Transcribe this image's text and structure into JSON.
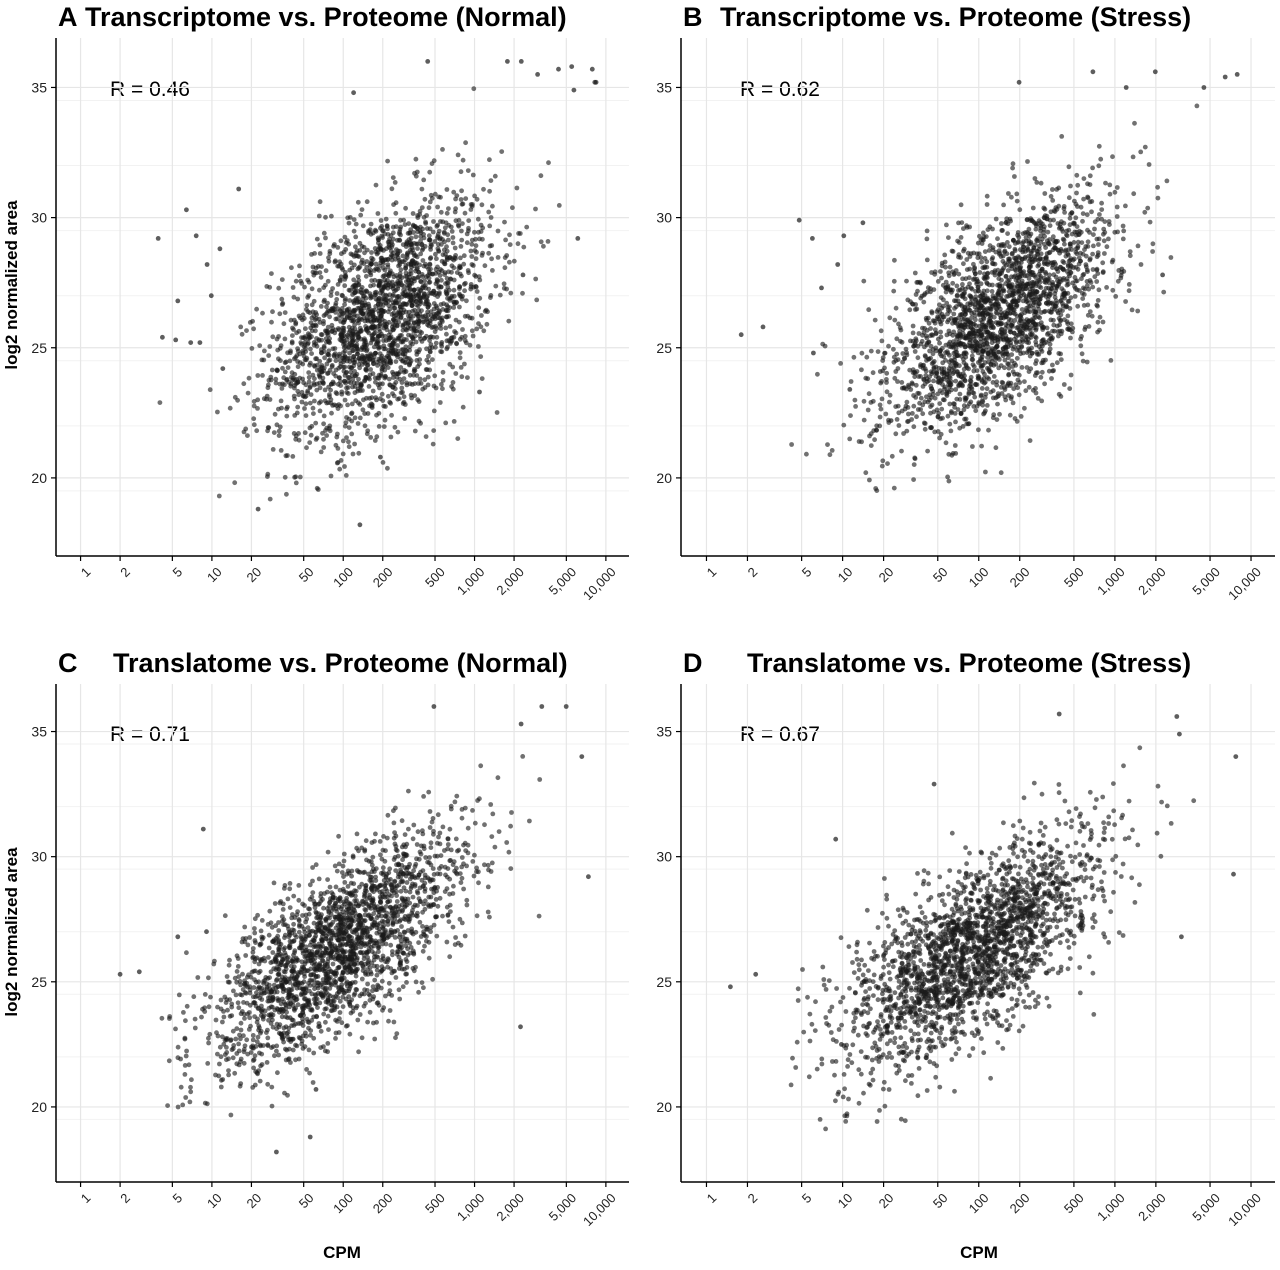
{
  "figure": {
    "ylabel": "log2 normalized area",
    "xlabel": "CPM"
  },
  "chart_data": [
    {
      "panel_letter": "A",
      "title": "Transcriptome vs. Proteome (Normal)",
      "type": "scatter",
      "annotation": "R = 0.46",
      "x_scale": "log10",
      "xlim": [
        0.65,
        15000
      ],
      "ylim": [
        17.0,
        36.9
      ],
      "x_ticks": [
        1,
        2,
        5,
        10,
        20,
        50,
        100,
        200,
        500,
        1000,
        2000,
        5000,
        10000
      ],
      "x_tick_labels": [
        "1",
        "2",
        "5",
        "10",
        "20",
        "50",
        "100",
        "200",
        "500",
        "1,000",
        "2,000",
        "5,000",
        "10,000"
      ],
      "y_ticks": [
        20,
        25,
        30,
        35
      ],
      "y_tick_labels": [
        "20",
        "25",
        "30",
        "35"
      ],
      "grid": true,
      "point_color": "#1a1a1a",
      "cloud": {
        "n": 2200,
        "center_log10_cpm": 2.3,
        "sd_log10_cpm": 0.42,
        "center_y": 26.2,
        "sd_y": 2.3,
        "r": 0.46
      },
      "outliers": [
        {
          "x": 3.9,
          "y": 29.2
        },
        {
          "x": 5.5,
          "y": 26.8
        },
        {
          "x": 6.4,
          "y": 30.3
        },
        {
          "x": 7.6,
          "y": 29.3
        },
        {
          "x": 8.1,
          "y": 25.2
        },
        {
          "x": 9.2,
          "y": 28.2
        },
        {
          "x": 9.9,
          "y": 27.0
        },
        {
          "x": 11.5,
          "y": 28.8
        },
        {
          "x": 12.1,
          "y": 24.2
        },
        {
          "x": 4.2,
          "y": 25.4
        },
        {
          "x": 5.3,
          "y": 25.3
        },
        {
          "x": 6.9,
          "y": 25.2
        },
        {
          "x": 22.5,
          "y": 18.8
        },
        {
          "x": 134,
          "y": 18.2
        },
        {
          "x": 192,
          "y": 20.8
        },
        {
          "x": 1090,
          "y": 23.3
        },
        {
          "x": 2340,
          "y": 27.8
        },
        {
          "x": 6110,
          "y": 29.2
        },
        {
          "x": 2270,
          "y": 36.0
        },
        {
          "x": 1780,
          "y": 36.0
        },
        {
          "x": 3020,
          "y": 35.5
        },
        {
          "x": 4360,
          "y": 35.7
        },
        {
          "x": 5490,
          "y": 35.8
        },
        {
          "x": 5710,
          "y": 34.9
        },
        {
          "x": 7880,
          "y": 35.7
        },
        {
          "x": 8420,
          "y": 35.2
        },
        {
          "x": 8240,
          "y": 35.2
        },
        {
          "x": 440,
          "y": 36.0
        },
        {
          "x": 120,
          "y": 34.8
        },
        {
          "x": 16,
          "y": 31.1
        }
      ]
    },
    {
      "panel_letter": "B",
      "title": "Transcriptome vs. Proteome (Stress)",
      "type": "scatter",
      "annotation": "R = 0.62",
      "x_scale": "log10",
      "xlim": [
        0.65,
        15000
      ],
      "ylim": [
        17.0,
        36.9
      ],
      "x_ticks": [
        1,
        2,
        5,
        10,
        20,
        50,
        100,
        200,
        500,
        1000,
        2000,
        5000,
        10000
      ],
      "x_tick_labels": [
        "1",
        "2",
        "5",
        "10",
        "20",
        "50",
        "100",
        "200",
        "500",
        "1,000",
        "2,000",
        "5,000",
        "10,000"
      ],
      "y_ticks": [
        20,
        25,
        30,
        35
      ],
      "y_tick_labels": [
        "20",
        "25",
        "30",
        "35"
      ],
      "grid": true,
      "point_color": "#1a1a1a",
      "cloud": {
        "n": 2200,
        "center_log10_cpm": 2.15,
        "sd_log10_cpm": 0.42,
        "center_y": 26.3,
        "sd_y": 2.3,
        "r": 0.62
      },
      "outliers": [
        {
          "x": 1.8,
          "y": 25.5
        },
        {
          "x": 2.6,
          "y": 25.8
        },
        {
          "x": 4.8,
          "y": 29.9
        },
        {
          "x": 6.0,
          "y": 29.2
        },
        {
          "x": 6.1,
          "y": 24.8
        },
        {
          "x": 7.0,
          "y": 27.3
        },
        {
          "x": 9.2,
          "y": 28.2
        },
        {
          "x": 10.2,
          "y": 29.3
        },
        {
          "x": 11.3,
          "y": 23.4
        },
        {
          "x": 14.1,
          "y": 29.8
        },
        {
          "x": 22.7,
          "y": 22.2
        },
        {
          "x": 198,
          "y": 35.2
        },
        {
          "x": 690,
          "y": 35.6
        },
        {
          "x": 1210,
          "y": 35.0
        },
        {
          "x": 1980,
          "y": 35.6
        },
        {
          "x": 4510,
          "y": 35.0
        },
        {
          "x": 6460,
          "y": 35.4
        },
        {
          "x": 7910,
          "y": 35.5
        },
        {
          "x": 2240,
          "y": 27.8
        }
      ]
    },
    {
      "panel_letter": "C",
      "title": "Translatome vs. Proteome (Normal)",
      "type": "scatter",
      "annotation": "R = 0.71",
      "x_scale": "log10",
      "xlim": [
        0.65,
        15000
      ],
      "ylim": [
        17.0,
        36.9
      ],
      "x_ticks": [
        1,
        2,
        5,
        10,
        20,
        50,
        100,
        200,
        500,
        1000,
        2000,
        5000,
        10000
      ],
      "x_tick_labels": [
        "1",
        "2",
        "5",
        "10",
        "20",
        "50",
        "100",
        "200",
        "500",
        "1,000",
        "2,000",
        "5,000",
        "10,000"
      ],
      "y_ticks": [
        20,
        25,
        30,
        35
      ],
      "y_tick_labels": [
        "20",
        "25",
        "30",
        "35"
      ],
      "grid": true,
      "point_color": "#1a1a1a",
      "cloud": {
        "n": 2200,
        "center_log10_cpm": 1.95,
        "sd_log10_cpm": 0.48,
        "center_y": 26.3,
        "sd_y": 2.3,
        "r": 0.71
      },
      "outliers": [
        {
          "x": 2.0,
          "y": 25.3
        },
        {
          "x": 2.8,
          "y": 25.4
        },
        {
          "x": 5.5,
          "y": 26.8
        },
        {
          "x": 8.6,
          "y": 31.1
        },
        {
          "x": 9.1,
          "y": 27.0
        },
        {
          "x": 31,
          "y": 18.2
        },
        {
          "x": 56,
          "y": 18.8
        },
        {
          "x": 62,
          "y": 20.7
        },
        {
          "x": 2240,
          "y": 23.2
        },
        {
          "x": 490,
          "y": 36.0
        },
        {
          "x": 3250,
          "y": 36.0
        },
        {
          "x": 4990,
          "y": 36.0
        },
        {
          "x": 2260,
          "y": 35.3
        },
        {
          "x": 7360,
          "y": 29.2
        },
        {
          "x": 6560,
          "y": 34.0
        }
      ]
    },
    {
      "panel_letter": "D",
      "title": "Translatome vs. Proteome (Stress)",
      "type": "scatter",
      "annotation": "R = 0.67",
      "x_scale": "log10",
      "xlim": [
        0.65,
        15000
      ],
      "ylim": [
        17.0,
        36.9
      ],
      "x_ticks": [
        1,
        2,
        5,
        10,
        20,
        50,
        100,
        200,
        500,
        1000,
        2000,
        5000,
        10000
      ],
      "x_tick_labels": [
        "1",
        "2",
        "5",
        "10",
        "20",
        "50",
        "100",
        "200",
        "500",
        "1,000",
        "2,000",
        "5,000",
        "10,000"
      ],
      "y_ticks": [
        20,
        25,
        30,
        35
      ],
      "y_tick_labels": [
        "20",
        "25",
        "30",
        "35"
      ],
      "grid": true,
      "point_color": "#1a1a1a",
      "cloud": {
        "n": 2200,
        "center_log10_cpm": 1.95,
        "sd_log10_cpm": 0.47,
        "center_y": 26.2,
        "sd_y": 2.3,
        "r": 0.67
      },
      "outliers": [
        {
          "x": 1.5,
          "y": 24.8
        },
        {
          "x": 2.3,
          "y": 25.3
        },
        {
          "x": 8.9,
          "y": 30.7
        },
        {
          "x": 9.8,
          "y": 22.5
        },
        {
          "x": 390,
          "y": 35.7
        },
        {
          "x": 2850,
          "y": 35.6
        },
        {
          "x": 2980,
          "y": 34.9
        },
        {
          "x": 7430,
          "y": 29.3
        },
        {
          "x": 3080,
          "y": 26.8
        },
        {
          "x": 7730,
          "y": 34.0
        },
        {
          "x": 47,
          "y": 32.9
        }
      ]
    }
  ]
}
